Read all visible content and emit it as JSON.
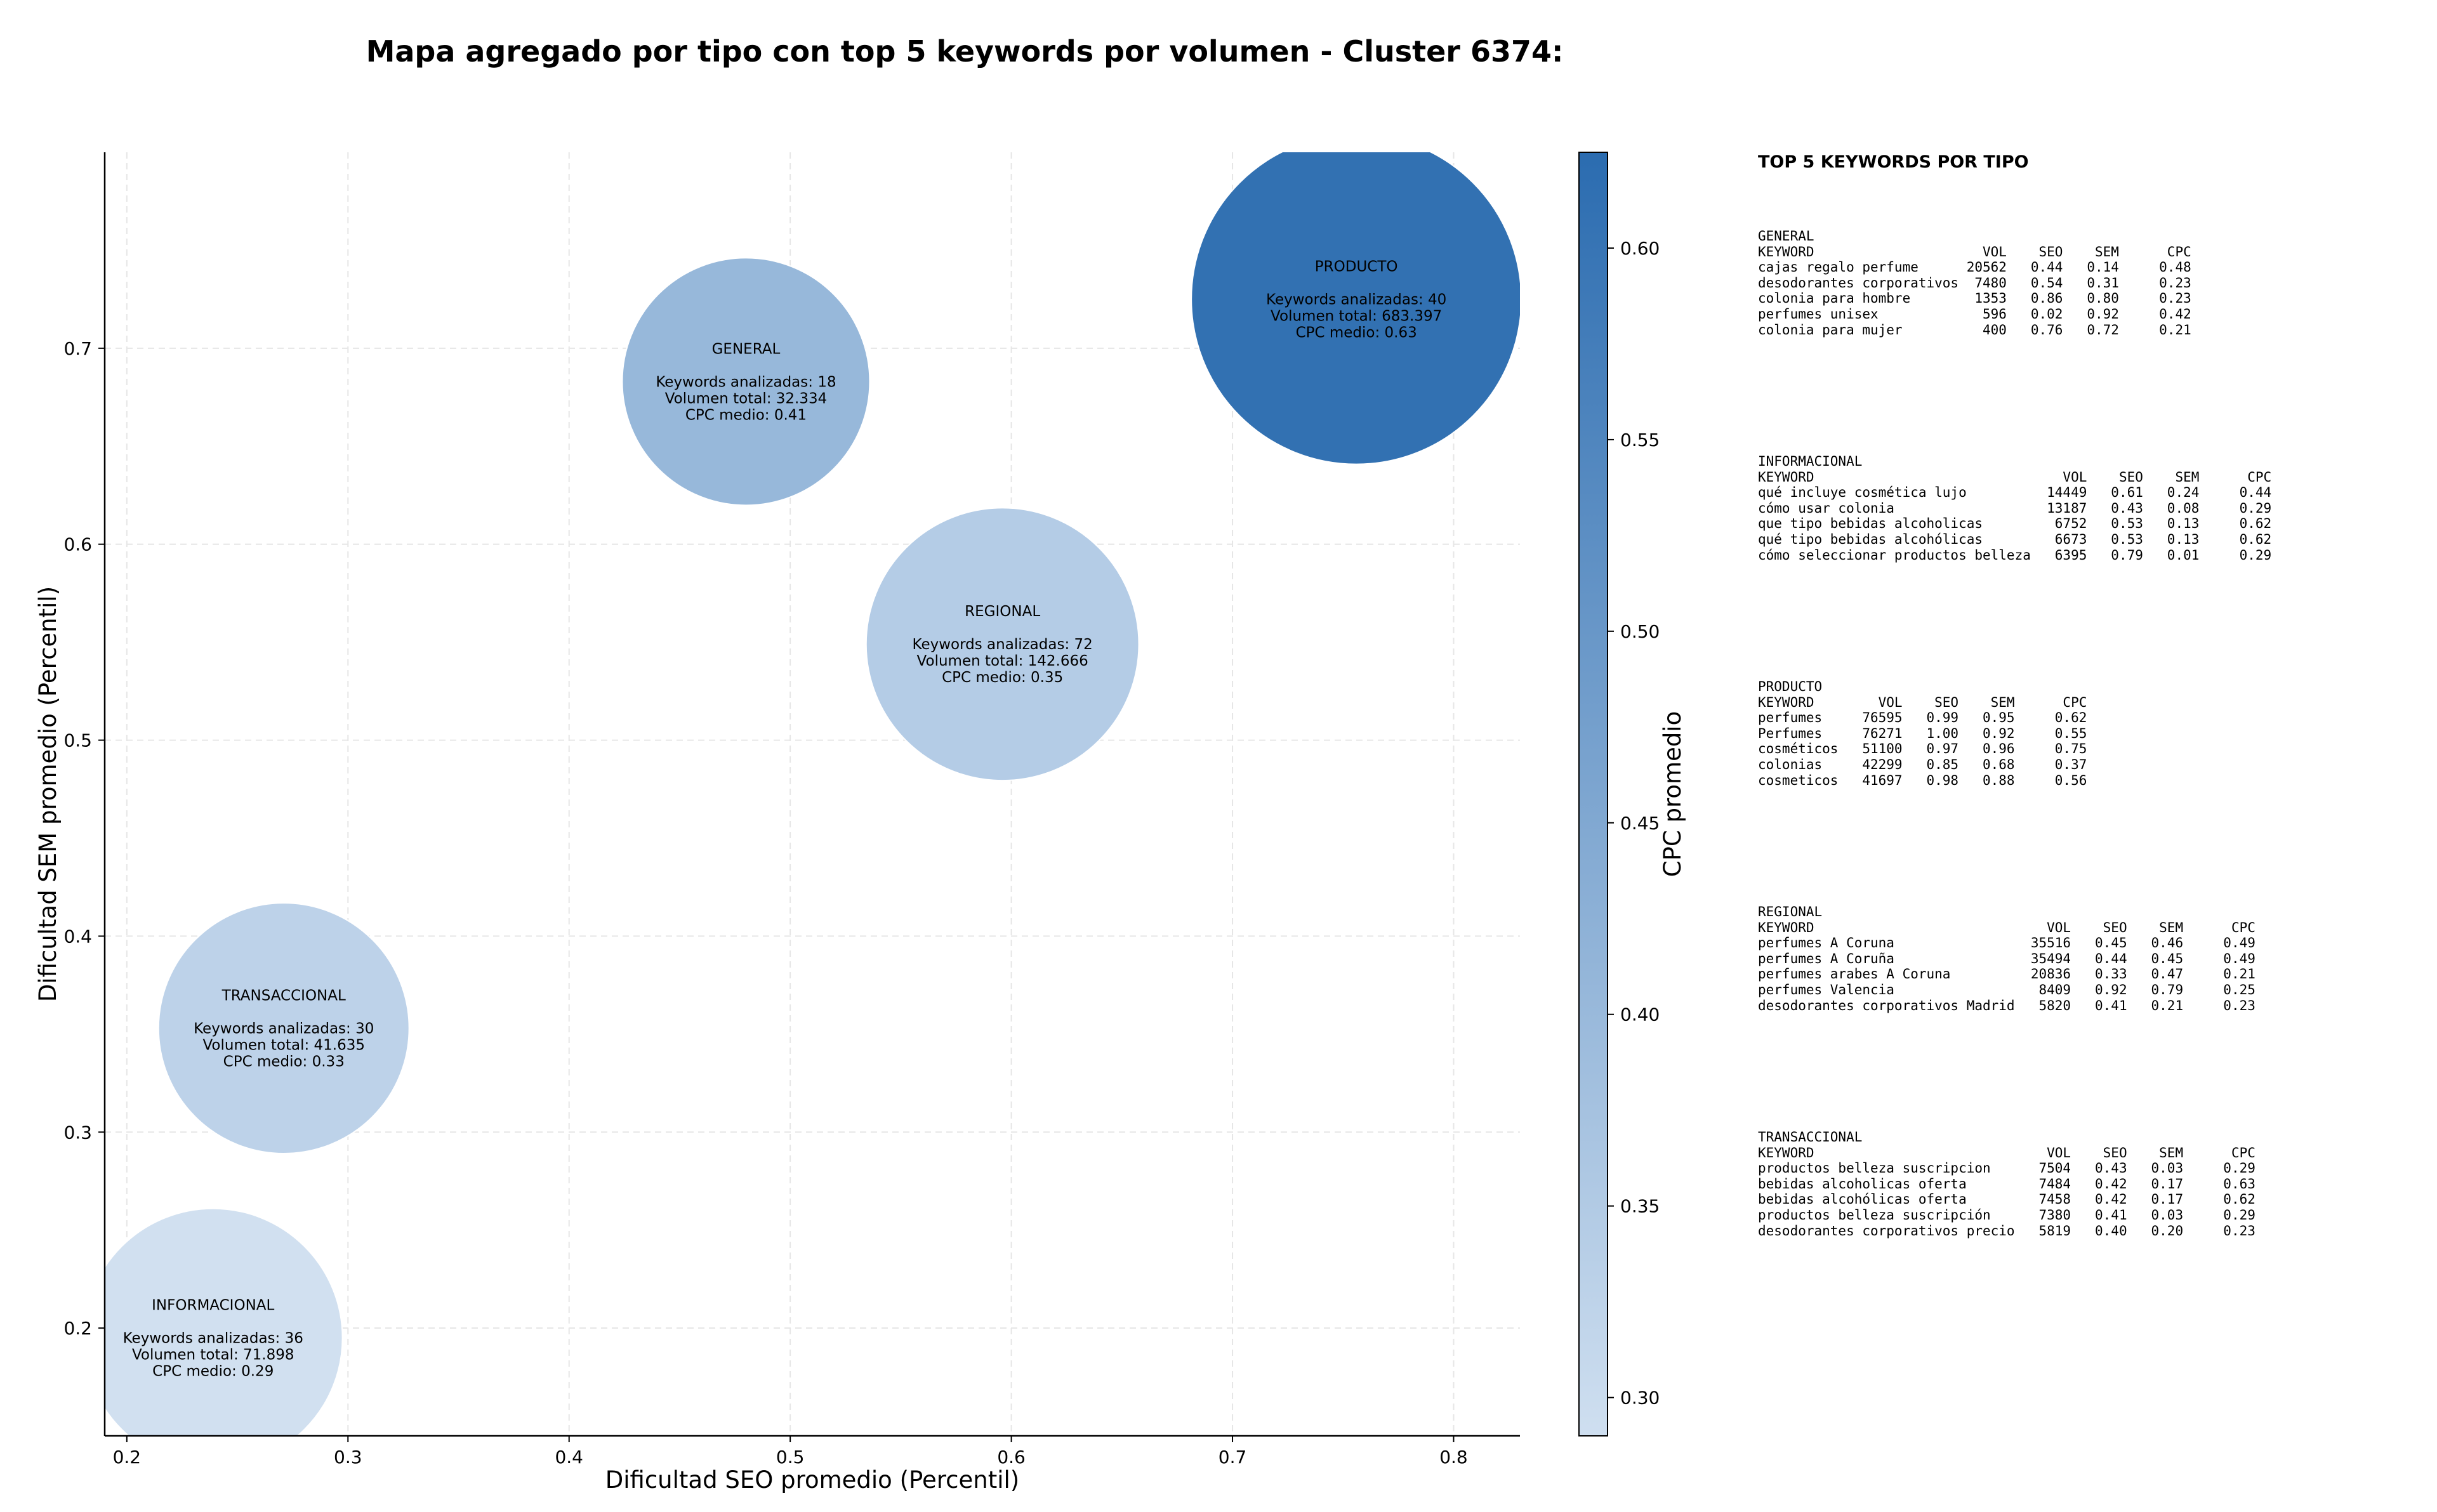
{
  "chart_data": {
    "type": "scatter",
    "title": "Mapa agregado por tipo con top 5 keywords por volumen - Cluster 6374:",
    "xlabel": "Dificultad SEO promedio (Percentil)",
    "ylabel": "Dificultad SEM promedio (Percentil)",
    "xlim": [
      0.19,
      0.83
    ],
    "ylim": [
      0.145,
      0.8
    ],
    "xticks": [
      0.2,
      0.3,
      0.4,
      0.5,
      0.6,
      0.7,
      0.8
    ],
    "yticks": [
      0.2,
      0.3,
      0.4,
      0.5,
      0.6,
      0.7
    ],
    "grid": true,
    "colorbar": {
      "label": "CPC promedio",
      "min": 0.29,
      "max": 0.625,
      "ticks": [
        0.3,
        0.35,
        0.4,
        0.45,
        0.5,
        0.55,
        0.6
      ],
      "low_color": "#cfdff0",
      "high_color": "#2b6cb0"
    },
    "bubble_label_prefix": {
      "keywords": "Keywords analizadas: ",
      "volume": "Volumen total: ",
      "cpc": "CPC medio: "
    },
    "points": [
      {
        "name": "GENERAL",
        "x": 0.48,
        "y": 0.683,
        "keywords": 18,
        "volume": 32334,
        "volume_text": "32.334",
        "cpc": 0.41,
        "cpc_text": "0.41"
      },
      {
        "name": "INFORMACIONAL",
        "x": 0.239,
        "y": 0.195,
        "keywords": 36,
        "volume": 71898,
        "volume_text": "71.898",
        "cpc": 0.29,
        "cpc_text": "0.29"
      },
      {
        "name": "PRODUCTO",
        "x": 0.756,
        "y": 0.725,
        "keywords": 40,
        "volume": 683397,
        "volume_text": "683.397",
        "cpc": 0.63,
        "cpc_text": "0.63"
      },
      {
        "name": "REGIONAL",
        "x": 0.596,
        "y": 0.549,
        "keywords": 72,
        "volume": 142666,
        "volume_text": "142.666",
        "cpc": 0.35,
        "cpc_text": "0.35"
      },
      {
        "name": "TRANSACCIONAL",
        "x": 0.271,
        "y": 0.353,
        "keywords": 30,
        "volume": 41635,
        "volume_text": "41.635",
        "cpc": 0.33,
        "cpc_text": "0.33"
      }
    ]
  },
  "keywords_panel": {
    "title": "TOP 5 KEYWORDS POR TIPO",
    "blocks": [
      {
        "type": "GENERAL",
        "header": "KEYWORD                     VOL    SEO    SEM      CPC",
        "rows": [
          "cajas regalo perfume      20562   0.44   0.14     0.48",
          "desodorantes corporativos  7480   0.54   0.31     0.23",
          "colonia para hombre        1353   0.86   0.80     0.23",
          "perfumes unisex             596   0.02   0.92     0.42",
          "colonia para mujer          400   0.76   0.72     0.21"
        ]
      },
      {
        "type": "INFORMACIONAL",
        "header": "KEYWORD                               VOL    SEO    SEM      CPC",
        "rows": [
          "qué incluye cosmética lujo          14449   0.61   0.24     0.44",
          "cómo usar colonia                   13187   0.43   0.08     0.29",
          "que tipo bebidas alcoholicas         6752   0.53   0.13     0.62",
          "qué tipo bebidas alcohólicas         6673   0.53   0.13     0.62",
          "cómo seleccionar productos belleza   6395   0.79   0.01     0.29"
        ]
      },
      {
        "type": "PRODUCTO",
        "header": "KEYWORD        VOL    SEO    SEM      CPC",
        "rows": [
          "perfumes     76595   0.99   0.95     0.62",
          "Perfumes     76271   1.00   0.92     0.55",
          "cosméticos   51100   0.97   0.96     0.75",
          "colonias     42299   0.85   0.68     0.37",
          "cosmeticos   41697   0.98   0.88     0.56"
        ]
      },
      {
        "type": "REGIONAL",
        "header": "KEYWORD                             VOL    SEO    SEM      CPC",
        "rows": [
          "perfumes A Coruna                 35516   0.45   0.46     0.49",
          "perfumes A Coruña                 35494   0.44   0.45     0.49",
          "perfumes arabes A Coruna          20836   0.33   0.47     0.21",
          "perfumes Valencia                  8409   0.92   0.79     0.25",
          "desodorantes corporativos Madrid   5820   0.41   0.21     0.23"
        ]
      },
      {
        "type": "TRANSACCIONAL",
        "header": "KEYWORD                             VOL    SEO    SEM      CPC",
        "rows": [
          "productos belleza suscripcion      7504   0.43   0.03     0.29",
          "bebidas alcoholicas oferta         7484   0.42   0.17     0.63",
          "bebidas alcohólicas oferta         7458   0.42   0.17     0.62",
          "productos belleza suscripción      7380   0.41   0.03     0.29",
          "desodorantes corporativos precio   5819   0.40   0.20     0.23"
        ]
      }
    ]
  }
}
